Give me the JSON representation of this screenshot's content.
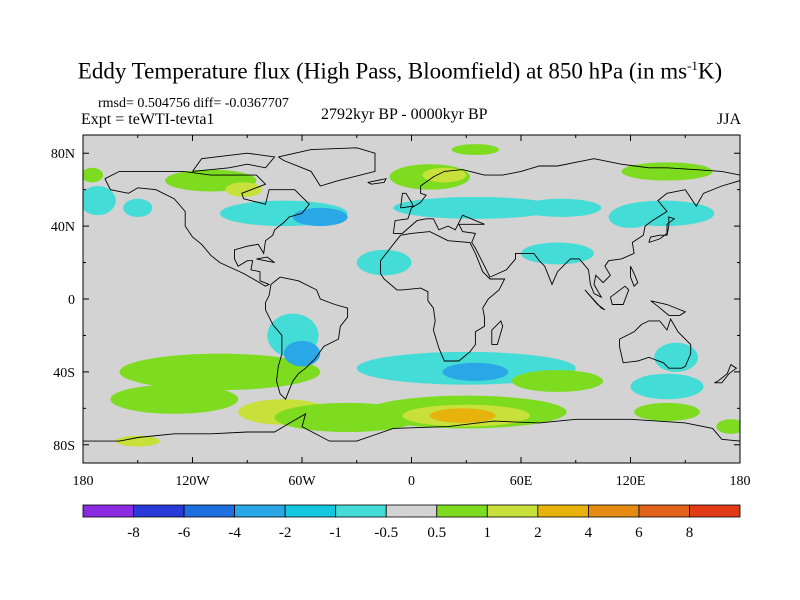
{
  "title": {
    "main": "Eddy Temperature flux (High Pass, Bloomfield) at 850 hPa (in ms",
    "sup": "-1",
    "tail": "K)"
  },
  "stats": "rmsd= 0.504756 diff= -0.0367707",
  "experiment": "Expt = teWTI-tevta1",
  "period": "2792kyr BP - 0000kyr BP",
  "season": "JJA",
  "axes": {
    "lat_ticks": [
      "80N",
      "40N",
      "0",
      "40S",
      "80S"
    ],
    "lon_ticks": [
      "180",
      "120W",
      "60W",
      "0",
      "60E",
      "120E",
      "180"
    ]
  },
  "colorbar": {
    "labels": [
      "-8",
      "-6",
      "-4",
      "-2",
      "-1",
      "-0.5",
      "0.5",
      "1",
      "2",
      "4",
      "6",
      "8"
    ],
    "colors": [
      "#8a2be2",
      "#2a3ad8",
      "#1e6fe0",
      "#2aa7e6",
      "#14c9df",
      "#44dcd6",
      "#d3d3d3",
      "#7ddc1f",
      "#c8e03a",
      "#e8b20c",
      "#e68a12",
      "#e2621a",
      "#e03a16"
    ]
  },
  "colors": {
    "land_bg": "#d3d3d3",
    "neutral": "#d3d3d3",
    "coast": "#000000"
  },
  "anomaly_patches": [
    {
      "lon": -110,
      "lat": 65,
      "rlon": 25,
      "rlat": 6,
      "level": "green"
    },
    {
      "lon": -92,
      "lat": 60,
      "rlon": 10,
      "rlat": 4,
      "level": "yellow"
    },
    {
      "lon": -70,
      "lat": 47,
      "rlon": 35,
      "rlat": 7,
      "level": "cyan"
    },
    {
      "lon": -50,
      "lat": 45,
      "rlon": 15,
      "rlat": 5,
      "level": "light_blue"
    },
    {
      "lon": -172,
      "lat": 54,
      "rlon": 10,
      "rlat": 8,
      "level": "cyan"
    },
    {
      "lon": -175,
      "lat": 68,
      "rlon": 6,
      "rlat": 4,
      "level": "green"
    },
    {
      "lon": -150,
      "lat": 50,
      "rlon": 8,
      "rlat": 5,
      "level": "cyan"
    },
    {
      "lon": -15,
      "lat": 20,
      "rlon": 15,
      "rlat": 7,
      "level": "cyan"
    },
    {
      "lon": 10,
      "lat": 67,
      "rlon": 22,
      "rlat": 7,
      "level": "green"
    },
    {
      "lon": 18,
      "lat": 68,
      "rlon": 12,
      "rlat": 4,
      "level": "yellow"
    },
    {
      "lon": 35,
      "lat": 50,
      "rlon": 45,
      "rlat": 6,
      "level": "cyan"
    },
    {
      "lon": 82,
      "lat": 50,
      "rlon": 22,
      "rlat": 5,
      "level": "cyan"
    },
    {
      "lon": 80,
      "lat": 25,
      "rlon": 20,
      "rlat": 6,
      "level": "cyan"
    },
    {
      "lon": 120,
      "lat": 45,
      "rlon": 12,
      "rlat": 6,
      "level": "cyan"
    },
    {
      "lon": 138,
      "lat": 47,
      "rlon": 28,
      "rlat": 7,
      "level": "cyan"
    },
    {
      "lon": 140,
      "lat": 70,
      "rlon": 25,
      "rlat": 5,
      "level": "green"
    },
    {
      "lon": 35,
      "lat": 82,
      "rlon": 13,
      "rlat": 3,
      "level": "green"
    },
    {
      "lon": -105,
      "lat": -40,
      "rlon": 55,
      "rlat": 10,
      "level": "green"
    },
    {
      "lon": -130,
      "lat": -55,
      "rlon": 35,
      "rlat": 8,
      "level": "green"
    },
    {
      "lon": -70,
      "lat": -62,
      "rlon": 25,
      "rlat": 7,
      "level": "yellow"
    },
    {
      "lon": -35,
      "lat": -65,
      "rlon": 40,
      "rlat": 8,
      "level": "green"
    },
    {
      "lon": -65,
      "lat": -20,
      "rlon": 14,
      "rlat": 12,
      "level": "cyan"
    },
    {
      "lon": -60,
      "lat": -30,
      "rlon": 10,
      "rlat": 7,
      "level": "light_blue"
    },
    {
      "lon": -150,
      "lat": -78,
      "rlon": 12,
      "rlat": 3,
      "level": "yellow"
    },
    {
      "lon": 30,
      "lat": -38,
      "rlon": 60,
      "rlat": 9,
      "level": "cyan"
    },
    {
      "lon": 35,
      "lat": -40,
      "rlon": 18,
      "rlat": 5,
      "level": "light_blue"
    },
    {
      "lon": 30,
      "lat": -62,
      "rlon": 55,
      "rlat": 9,
      "level": "green"
    },
    {
      "lon": 30,
      "lat": -64,
      "rlon": 35,
      "rlat": 6,
      "level": "yellow"
    },
    {
      "lon": 28,
      "lat": -64,
      "rlon": 18,
      "rlat": 4,
      "level": "orange"
    },
    {
      "lon": 80,
      "lat": -45,
      "rlon": 25,
      "rlat": 6,
      "level": "green"
    },
    {
      "lon": 145,
      "lat": -32,
      "rlon": 12,
      "rlat": 8,
      "level": "cyan"
    },
    {
      "lon": 140,
      "lat": -48,
      "rlon": 20,
      "rlat": 7,
      "level": "cyan"
    },
    {
      "lon": 140,
      "lat": -62,
      "rlon": 18,
      "rlat": 5,
      "level": "green"
    },
    {
      "lon": 175,
      "lat": -70,
      "rlon": 8,
      "rlat": 4,
      "level": "green"
    }
  ],
  "level_colors": {
    "cyan": "#44dcd6",
    "light_blue": "#2aa7e6",
    "green": "#7ddc1f",
    "yellow": "#c8e03a",
    "orange": "#e8b20c"
  },
  "coastlines": [
    [
      [
        -168,
        66
      ],
      [
        -160,
        70
      ],
      [
        -140,
        70
      ],
      [
        -125,
        70
      ],
      [
        -110,
        68
      ],
      [
        -95,
        68
      ],
      [
        -85,
        68
      ],
      [
        -80,
        63
      ],
      [
        -93,
        58
      ],
      [
        -92,
        55
      ],
      [
        -80,
        52
      ],
      [
        -78,
        60
      ],
      [
        -70,
        60
      ],
      [
        -64,
        60
      ],
      [
        -56,
        52
      ],
      [
        -60,
        47
      ],
      [
        -67,
        45
      ],
      [
        -70,
        42
      ],
      [
        -75,
        38
      ],
      [
        -76,
        35
      ],
      [
        -80,
        32
      ],
      [
        -81,
        25
      ],
      [
        -84,
        30
      ],
      [
        -90,
        29
      ],
      [
        -97,
        27
      ],
      [
        -97,
        22
      ],
      [
        -95,
        18
      ],
      [
        -90,
        21
      ],
      [
        -87,
        21
      ],
      [
        -88,
        16
      ],
      [
        -83,
        15
      ],
      [
        -83,
        10
      ],
      [
        -78,
        8
      ],
      [
        -80,
        7
      ],
      [
        -85,
        10
      ],
      [
        -92,
        14
      ],
      [
        -105,
        20
      ],
      [
        -110,
        24
      ],
      [
        -115,
        30
      ],
      [
        -120,
        34
      ],
      [
        -124,
        40
      ],
      [
        -124,
        48
      ],
      [
        -130,
        55
      ],
      [
        -140,
        60
      ],
      [
        -150,
        61
      ],
      [
        -155,
        58
      ],
      [
        -165,
        60
      ],
      [
        -168,
        66
      ]
    ],
    [
      [
        -77,
        8
      ],
      [
        -72,
        12
      ],
      [
        -62,
        10
      ],
      [
        -52,
        5
      ],
      [
        -50,
        0
      ],
      [
        -42,
        -3
      ],
      [
        -35,
        -5
      ],
      [
        -35,
        -10
      ],
      [
        -39,
        -15
      ],
      [
        -40,
        -22
      ],
      [
        -48,
        -26
      ],
      [
        -53,
        -33
      ],
      [
        -58,
        -38
      ],
      [
        -62,
        -41
      ],
      [
        -65,
        -45
      ],
      [
        -67,
        -50
      ],
      [
        -69,
        -55
      ],
      [
        -72,
        -52
      ],
      [
        -74,
        -45
      ],
      [
        -73,
        -37
      ],
      [
        -71,
        -30
      ],
      [
        -71,
        -20
      ],
      [
        -76,
        -14
      ],
      [
        -80,
        -6
      ],
      [
        -80,
        -2
      ],
      [
        -78,
        2
      ],
      [
        -77,
        8
      ]
    ],
    [
      [
        -73,
        78
      ],
      [
        -55,
        82
      ],
      [
        -30,
        83
      ],
      [
        -20,
        80
      ],
      [
        -20,
        70
      ],
      [
        -40,
        65
      ],
      [
        -50,
        62
      ],
      [
        -55,
        70
      ],
      [
        -70,
        76
      ],
      [
        -73,
        78
      ]
    ],
    [
      [
        -10,
        36
      ],
      [
        -9,
        43
      ],
      [
        -2,
        44
      ],
      [
        0,
        50
      ],
      [
        5,
        53
      ],
      [
        8,
        57
      ],
      [
        5,
        58
      ],
      [
        5,
        62
      ],
      [
        12,
        67
      ],
      [
        18,
        70
      ],
      [
        28,
        71
      ],
      [
        40,
        68
      ],
      [
        50,
        68
      ],
      [
        60,
        70
      ],
      [
        70,
        73
      ],
      [
        80,
        73
      ],
      [
        90,
        75
      ],
      [
        100,
        77
      ],
      [
        115,
        74
      ],
      [
        130,
        72
      ],
      [
        140,
        72
      ],
      [
        155,
        71
      ],
      [
        170,
        70
      ],
      [
        180,
        68
      ],
      [
        180,
        65
      ],
      [
        170,
        62
      ],
      [
        160,
        58
      ],
      [
        156,
        51
      ],
      [
        150,
        60
      ],
      [
        140,
        58
      ],
      [
        135,
        54
      ],
      [
        140,
        48
      ],
      [
        132,
        43
      ],
      [
        128,
        40
      ],
      [
        127,
        35
      ],
      [
        121,
        31
      ],
      [
        122,
        25
      ],
      [
        115,
        22
      ],
      [
        108,
        21
      ],
      [
        106,
        18
      ],
      [
        109,
        13
      ],
      [
        105,
        9
      ],
      [
        101,
        13
      ],
      [
        100,
        8
      ],
      [
        104,
        1
      ],
      [
        100,
        3
      ],
      [
        98,
        8
      ],
      [
        97,
        16
      ],
      [
        92,
        22
      ],
      [
        87,
        22
      ],
      [
        80,
        15
      ],
      [
        77,
        8
      ],
      [
        73,
        18
      ],
      [
        70,
        21
      ],
      [
        67,
        25
      ],
      [
        57,
        25
      ],
      [
        57,
        22
      ],
      [
        52,
        16
      ],
      [
        43,
        12
      ],
      [
        39,
        20
      ],
      [
        35,
        28
      ],
      [
        33,
        31
      ],
      [
        35,
        36
      ],
      [
        28,
        37
      ],
      [
        26,
        41
      ],
      [
        29,
        41
      ],
      [
        40,
        41
      ],
      [
        28,
        46
      ],
      [
        24,
        38
      ],
      [
        20,
        40
      ],
      [
        15,
        38
      ],
      [
        12,
        44
      ],
      [
        8,
        44
      ],
      [
        3,
        43
      ],
      [
        -5,
        36
      ],
      [
        -10,
        36
      ]
    ],
    [
      [
        -17,
        21
      ],
      [
        -17,
        14
      ],
      [
        -15,
        11
      ],
      [
        -8,
        5
      ],
      [
        -5,
        5
      ],
      [
        5,
        6
      ],
      [
        9,
        4
      ],
      [
        9,
        -1
      ],
      [
        12,
        -5
      ],
      [
        13,
        -12
      ],
      [
        12,
        -17
      ],
      [
        15,
        -27
      ],
      [
        18,
        -34
      ],
      [
        26,
        -34
      ],
      [
        32,
        -29
      ],
      [
        35,
        -25
      ],
      [
        35,
        -18
      ],
      [
        40,
        -15
      ],
      [
        40,
        -10
      ],
      [
        39,
        -5
      ],
      [
        42,
        0
      ],
      [
        48,
        5
      ],
      [
        51,
        11
      ],
      [
        43,
        11
      ],
      [
        39,
        15
      ],
      [
        35,
        25
      ],
      [
        32,
        31
      ],
      [
        20,
        32
      ],
      [
        10,
        37
      ],
      [
        0,
        36
      ],
      [
        -6,
        35
      ],
      [
        -10,
        30
      ],
      [
        -17,
        21
      ]
    ],
    [
      [
        44,
        -25
      ],
      [
        47,
        -25
      ],
      [
        50,
        -15
      ],
      [
        49,
        -12
      ],
      [
        44,
        -17
      ],
      [
        44,
        -25
      ]
    ],
    [
      [
        114,
        -22
      ],
      [
        114,
        -26
      ],
      [
        116,
        -35
      ],
      [
        124,
        -34
      ],
      [
        130,
        -32
      ],
      [
        138,
        -35
      ],
      [
        141,
        -38
      ],
      [
        148,
        -38
      ],
      [
        150,
        -37
      ],
      [
        153,
        -30
      ],
      [
        153,
        -25
      ],
      [
        146,
        -18
      ],
      [
        142,
        -11
      ],
      [
        140,
        -17
      ],
      [
        136,
        -12
      ],
      [
        130,
        -12
      ],
      [
        126,
        -14
      ],
      [
        122,
        -18
      ],
      [
        114,
        -22
      ]
    ],
    [
      [
        166,
        -46
      ],
      [
        170,
        -46
      ],
      [
        174,
        -41
      ],
      [
        178,
        -38
      ],
      [
        175,
        -36
      ],
      [
        173,
        -41
      ],
      [
        168,
        -45
      ],
      [
        166,
        -46
      ]
    ],
    [
      [
        -180,
        -78
      ],
      [
        -160,
        -78
      ],
      [
        -150,
        -76
      ],
      [
        -130,
        -74
      ],
      [
        -110,
        -74
      ],
      [
        -90,
        -73
      ],
      [
        -75,
        -73
      ],
      [
        -65,
        -67
      ],
      [
        -58,
        -63
      ],
      [
        -60,
        -70
      ],
      [
        -45,
        -78
      ],
      [
        -30,
        -78
      ],
      [
        -10,
        -71
      ],
      [
        20,
        -70
      ],
      [
        45,
        -67
      ],
      [
        70,
        -68
      ],
      [
        90,
        -66
      ],
      [
        120,
        -66
      ],
      [
        150,
        -68
      ],
      [
        165,
        -71
      ],
      [
        170,
        -77
      ],
      [
        180,
        -78
      ]
    ],
    [
      [
        -6,
        50
      ],
      [
        -5,
        58
      ],
      [
        -3,
        58
      ],
      [
        0,
        53
      ],
      [
        1,
        51
      ],
      [
        -6,
        50
      ]
    ],
    [
      [
        130,
        31
      ],
      [
        131,
        34
      ],
      [
        136,
        35
      ],
      [
        140,
        35
      ],
      [
        141,
        40
      ],
      [
        141,
        45
      ],
      [
        144,
        44
      ],
      [
        140,
        41
      ],
      [
        140,
        36
      ],
      [
        136,
        33
      ],
      [
        130,
        31
      ]
    ],
    [
      [
        95,
        5
      ],
      [
        102,
        -3
      ],
      [
        106,
        -6
      ],
      [
        104,
        -5
      ],
      [
        95,
        5
      ]
    ],
    [
      [
        109,
        1
      ],
      [
        117,
        7
      ],
      [
        119,
        5
      ],
      [
        116,
        -3
      ],
      [
        110,
        -3
      ],
      [
        109,
        1
      ]
    ],
    [
      [
        131,
        -1
      ],
      [
        140,
        -3
      ],
      [
        150,
        -7
      ],
      [
        147,
        -9
      ],
      [
        141,
        -9
      ],
      [
        135,
        -4
      ],
      [
        131,
        -1
      ]
    ],
    [
      [
        -24,
        64
      ],
      [
        -14,
        66
      ],
      [
        -15,
        64
      ],
      [
        -22,
        63
      ],
      [
        -24,
        64
      ]
    ],
    [
      [
        -120,
        70
      ],
      [
        -100,
        72
      ],
      [
        -90,
        74
      ],
      [
        -80,
        72
      ],
      [
        -75,
        78
      ],
      [
        -90,
        80
      ],
      [
        -115,
        77
      ],
      [
        -120,
        70
      ]
    ],
    [
      [
        -85,
        22
      ],
      [
        -75,
        20
      ],
      [
        -79,
        23
      ],
      [
        -85,
        22
      ]
    ],
    [
      [
        120,
        18
      ],
      [
        122,
        14
      ],
      [
        124,
        9
      ],
      [
        122,
        7
      ],
      [
        120,
        12
      ],
      [
        120,
        18
      ]
    ]
  ]
}
